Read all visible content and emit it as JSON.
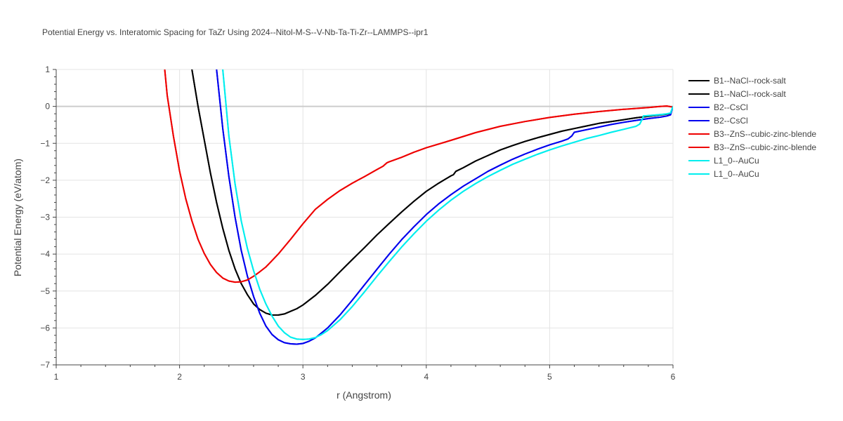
{
  "chart_data": {
    "type": "line",
    "title": "Potential Energy vs. Interatomic Spacing for TaZr Using 2024--Nitol-M-S--V-Nb-Ta-Ti-Zr--LAMMPS--ipr1",
    "xlabel": "r (Angstrom)",
    "ylabel": "Potential Energy (eV/atom)",
    "xlim": [
      1,
      6
    ],
    "ylim": [
      -7,
      1
    ],
    "xticks": [
      1,
      2,
      3,
      4,
      5,
      6
    ],
    "yticks": [
      1,
      0,
      -1,
      -2,
      -3,
      -4,
      -5,
      -6,
      -7
    ],
    "ytick_labels": [
      "1",
      "0",
      "−1",
      "−2",
      "−3",
      "−4",
      "−5",
      "−6",
      "−7"
    ],
    "grid": true,
    "legend_position": "right",
    "series": [
      {
        "name": "B1--NaCl--rock-salt",
        "color": "#000000",
        "x": [
          2.1,
          2.15,
          2.2,
          2.25,
          2.3,
          2.35,
          2.4,
          2.45,
          2.5,
          2.55,
          2.6,
          2.65,
          2.7,
          2.75,
          2.8,
          2.85,
          2.9,
          2.95,
          3.0,
          3.1,
          3.2,
          3.3,
          3.4,
          3.5,
          3.6,
          3.7,
          3.8,
          3.9,
          4.0,
          4.1,
          4.2,
          4.22,
          4.24,
          4.3,
          4.4,
          4.5,
          4.6,
          4.7,
          4.8,
          4.9,
          5.0,
          5.1,
          5.2,
          5.3,
          5.4,
          5.5,
          5.6,
          5.7,
          5.8,
          5.9,
          5.95,
          5.98,
          6.0
        ],
        "y": [
          1.0,
          0.0,
          -0.9,
          -1.8,
          -2.6,
          -3.3,
          -3.9,
          -4.4,
          -4.8,
          -5.1,
          -5.35,
          -5.5,
          -5.6,
          -5.65,
          -5.65,
          -5.62,
          -5.55,
          -5.48,
          -5.38,
          -5.12,
          -4.82,
          -4.48,
          -4.15,
          -3.82,
          -3.48,
          -3.17,
          -2.86,
          -2.57,
          -2.3,
          -2.08,
          -1.88,
          -1.85,
          -1.76,
          -1.66,
          -1.48,
          -1.33,
          -1.18,
          -1.06,
          -0.95,
          -0.85,
          -0.76,
          -0.67,
          -0.6,
          -0.53,
          -0.46,
          -0.41,
          -0.36,
          -0.31,
          -0.27,
          -0.23,
          -0.21,
          -0.19,
          0.0
        ]
      },
      {
        "name": "B1--NaCl--rock-salt",
        "color": "#000000",
        "x": [
          2.1,
          2.15,
          2.2,
          2.25,
          2.3,
          2.35,
          2.4,
          2.45,
          2.5,
          2.55,
          2.6,
          2.65,
          2.7,
          2.75,
          2.8,
          2.85,
          2.9,
          2.95,
          3.0,
          3.1,
          3.2,
          3.3,
          3.4,
          3.5,
          3.6,
          3.7,
          3.8,
          3.9,
          4.0,
          4.1,
          4.2,
          4.22,
          4.24,
          4.3,
          4.4,
          4.5,
          4.6,
          4.7,
          4.8,
          4.9,
          5.0,
          5.1,
          5.2,
          5.3,
          5.4,
          5.5,
          5.6,
          5.7,
          5.8,
          5.9,
          5.95,
          5.98,
          6.0
        ],
        "y": [
          1.0,
          0.0,
          -0.9,
          -1.8,
          -2.6,
          -3.3,
          -3.9,
          -4.4,
          -4.8,
          -5.1,
          -5.35,
          -5.5,
          -5.6,
          -5.65,
          -5.65,
          -5.62,
          -5.55,
          -5.48,
          -5.38,
          -5.12,
          -4.82,
          -4.48,
          -4.15,
          -3.82,
          -3.48,
          -3.17,
          -2.86,
          -2.57,
          -2.3,
          -2.08,
          -1.88,
          -1.85,
          -1.76,
          -1.66,
          -1.48,
          -1.33,
          -1.18,
          -1.06,
          -0.95,
          -0.85,
          -0.76,
          -0.67,
          -0.6,
          -0.53,
          -0.46,
          -0.41,
          -0.36,
          -0.31,
          -0.27,
          -0.23,
          -0.21,
          -0.19,
          0.0
        ]
      },
      {
        "name": "B2--CsCl",
        "color": "#0000ee",
        "x": [
          2.3,
          2.35,
          2.4,
          2.45,
          2.5,
          2.55,
          2.6,
          2.65,
          2.7,
          2.75,
          2.8,
          2.85,
          2.9,
          2.95,
          3.0,
          3.05,
          3.1,
          3.15,
          3.2,
          3.3,
          3.4,
          3.5,
          3.6,
          3.7,
          3.8,
          3.9,
          4.0,
          4.1,
          4.2,
          4.3,
          4.4,
          4.5,
          4.6,
          4.7,
          4.8,
          4.9,
          5.0,
          5.1,
          5.15,
          5.18,
          5.2,
          5.3,
          5.4,
          5.5,
          5.6,
          5.7,
          5.8,
          5.9,
          5.95,
          5.98,
          6.0
        ],
        "y": [
          1.0,
          -0.6,
          -1.9,
          -3.0,
          -3.9,
          -4.6,
          -5.15,
          -5.6,
          -5.95,
          -6.18,
          -6.32,
          -6.4,
          -6.43,
          -6.44,
          -6.42,
          -6.36,
          -6.27,
          -6.14,
          -6.0,
          -5.65,
          -5.25,
          -4.83,
          -4.41,
          -4.0,
          -3.61,
          -3.26,
          -2.93,
          -2.64,
          -2.39,
          -2.16,
          -1.96,
          -1.76,
          -1.59,
          -1.43,
          -1.29,
          -1.16,
          -1.04,
          -0.94,
          -0.88,
          -0.8,
          -0.7,
          -0.63,
          -0.56,
          -0.49,
          -0.43,
          -0.38,
          -0.33,
          -0.29,
          -0.26,
          -0.23,
          0.0
        ]
      },
      {
        "name": "B2--CsCl",
        "color": "#0000ee",
        "x": [
          2.3,
          2.35,
          2.4,
          2.45,
          2.5,
          2.55,
          2.6,
          2.65,
          2.7,
          2.75,
          2.8,
          2.85,
          2.9,
          2.95,
          3.0,
          3.05,
          3.1,
          3.15,
          3.2,
          3.3,
          3.4,
          3.5,
          3.6,
          3.7,
          3.8,
          3.9,
          4.0,
          4.1,
          4.2,
          4.3,
          4.4,
          4.5,
          4.6,
          4.7,
          4.8,
          4.9,
          5.0,
          5.1,
          5.15,
          5.18,
          5.2,
          5.3,
          5.4,
          5.5,
          5.6,
          5.7,
          5.8,
          5.9,
          5.95,
          5.98,
          6.0
        ],
        "y": [
          1.0,
          -0.6,
          -1.9,
          -3.0,
          -3.9,
          -4.6,
          -5.15,
          -5.6,
          -5.95,
          -6.18,
          -6.32,
          -6.4,
          -6.43,
          -6.44,
          -6.42,
          -6.36,
          -6.27,
          -6.14,
          -6.0,
          -5.65,
          -5.25,
          -4.83,
          -4.41,
          -4.0,
          -3.61,
          -3.26,
          -2.93,
          -2.64,
          -2.39,
          -2.16,
          -1.96,
          -1.76,
          -1.59,
          -1.43,
          -1.29,
          -1.16,
          -1.04,
          -0.94,
          -0.88,
          -0.8,
          -0.7,
          -0.63,
          -0.56,
          -0.49,
          -0.43,
          -0.38,
          -0.33,
          -0.29,
          -0.26,
          -0.23,
          0.0
        ]
      },
      {
        "name": "B3--ZnS--cubic-zinc-blende",
        "color": "#ee0000",
        "x": [
          1.88,
          1.9,
          1.95,
          2.0,
          2.05,
          2.1,
          2.15,
          2.2,
          2.25,
          2.3,
          2.35,
          2.4,
          2.45,
          2.5,
          2.55,
          2.6,
          2.65,
          2.7,
          2.8,
          2.9,
          3.0,
          3.1,
          3.2,
          3.3,
          3.4,
          3.5,
          3.6,
          3.65,
          3.68,
          3.7,
          3.8,
          3.9,
          4.0,
          4.2,
          4.4,
          4.6,
          4.8,
          5.0,
          5.2,
          5.4,
          5.6,
          5.8,
          5.9,
          5.95,
          6.0
        ],
        "y": [
          1.0,
          0.3,
          -0.8,
          -1.75,
          -2.5,
          -3.1,
          -3.6,
          -3.98,
          -4.28,
          -4.5,
          -4.65,
          -4.73,
          -4.76,
          -4.75,
          -4.7,
          -4.6,
          -4.48,
          -4.35,
          -4.0,
          -3.6,
          -3.18,
          -2.79,
          -2.52,
          -2.28,
          -2.08,
          -1.9,
          -1.71,
          -1.62,
          -1.53,
          -1.5,
          -1.38,
          -1.24,
          -1.12,
          -0.92,
          -0.71,
          -0.54,
          -0.41,
          -0.3,
          -0.21,
          -0.14,
          -0.08,
          -0.03,
          0.0,
          0.01,
          -0.02
        ]
      },
      {
        "name": "B3--ZnS--cubic-zinc-blende",
        "color": "#ee0000",
        "x": [
          1.88,
          1.9,
          1.95,
          2.0,
          2.05,
          2.1,
          2.15,
          2.2,
          2.25,
          2.3,
          2.35,
          2.4,
          2.45,
          2.5,
          2.55,
          2.6,
          2.65,
          2.7,
          2.8,
          2.9,
          3.0,
          3.1,
          3.2,
          3.3,
          3.4,
          3.5,
          3.6,
          3.65,
          3.68,
          3.7,
          3.8,
          3.9,
          4.0,
          4.2,
          4.4,
          4.6,
          4.8,
          5.0,
          5.2,
          5.4,
          5.6,
          5.8,
          5.9,
          5.95,
          6.0
        ],
        "y": [
          1.0,
          0.3,
          -0.8,
          -1.75,
          -2.5,
          -3.1,
          -3.6,
          -3.98,
          -4.28,
          -4.5,
          -4.65,
          -4.73,
          -4.76,
          -4.75,
          -4.7,
          -4.6,
          -4.48,
          -4.35,
          -4.0,
          -3.6,
          -3.18,
          -2.79,
          -2.52,
          -2.28,
          -2.08,
          -1.9,
          -1.71,
          -1.62,
          -1.53,
          -1.5,
          -1.38,
          -1.24,
          -1.12,
          -0.92,
          -0.71,
          -0.54,
          -0.41,
          -0.3,
          -0.21,
          -0.14,
          -0.08,
          -0.03,
          0.0,
          0.01,
          -0.02
        ]
      },
      {
        "name": "L1_0--AuCu",
        "color": "#00eeee",
        "x": [
          2.35,
          2.4,
          2.45,
          2.5,
          2.55,
          2.6,
          2.65,
          2.7,
          2.75,
          2.8,
          2.85,
          2.9,
          2.95,
          3.0,
          3.05,
          3.1,
          3.15,
          3.2,
          3.3,
          3.4,
          3.5,
          3.6,
          3.7,
          3.8,
          3.9,
          4.0,
          4.1,
          4.2,
          4.3,
          4.4,
          4.5,
          4.6,
          4.7,
          4.8,
          4.9,
          5.0,
          5.1,
          5.2,
          5.3,
          5.4,
          5.5,
          5.6,
          5.7,
          5.73,
          5.75,
          5.76,
          5.8,
          5.9,
          5.95,
          5.98,
          6.0
        ],
        "y": [
          1.0,
          -0.8,
          -2.1,
          -3.1,
          -3.85,
          -4.45,
          -4.95,
          -5.35,
          -5.68,
          -5.95,
          -6.13,
          -6.25,
          -6.3,
          -6.31,
          -6.3,
          -6.26,
          -6.18,
          -6.07,
          -5.78,
          -5.42,
          -5.02,
          -4.6,
          -4.2,
          -3.81,
          -3.45,
          -3.11,
          -2.81,
          -2.54,
          -2.3,
          -2.09,
          -1.9,
          -1.73,
          -1.57,
          -1.43,
          -1.3,
          -1.18,
          -1.07,
          -0.97,
          -0.87,
          -0.79,
          -0.7,
          -0.62,
          -0.54,
          -0.48,
          -0.35,
          -0.26,
          -0.25,
          -0.22,
          -0.2,
          -0.18,
          0.0
        ]
      },
      {
        "name": "L1_0--AuCu",
        "color": "#00eeee",
        "x": [
          2.35,
          2.4,
          2.45,
          2.5,
          2.55,
          2.6,
          2.65,
          2.7,
          2.75,
          2.8,
          2.85,
          2.9,
          2.95,
          3.0,
          3.05,
          3.1,
          3.15,
          3.2,
          3.3,
          3.4,
          3.5,
          3.6,
          3.7,
          3.8,
          3.9,
          4.0,
          4.1,
          4.2,
          4.3,
          4.4,
          4.5,
          4.6,
          4.7,
          4.8,
          4.9,
          5.0,
          5.1,
          5.2,
          5.3,
          5.4,
          5.5,
          5.6,
          5.7,
          5.73,
          5.75,
          5.76,
          5.8,
          5.9,
          5.95,
          5.98,
          6.0
        ],
        "y": [
          1.0,
          -0.8,
          -2.1,
          -3.1,
          -3.85,
          -4.45,
          -4.95,
          -5.35,
          -5.68,
          -5.95,
          -6.13,
          -6.25,
          -6.3,
          -6.31,
          -6.3,
          -6.26,
          -6.18,
          -6.07,
          -5.78,
          -5.42,
          -5.02,
          -4.6,
          -4.2,
          -3.81,
          -3.45,
          -3.11,
          -2.81,
          -2.54,
          -2.3,
          -2.09,
          -1.9,
          -1.73,
          -1.57,
          -1.43,
          -1.3,
          -1.18,
          -1.07,
          -0.97,
          -0.87,
          -0.79,
          -0.7,
          -0.62,
          -0.54,
          -0.48,
          -0.35,
          -0.26,
          -0.25,
          -0.22,
          -0.2,
          -0.18,
          0.0
        ]
      }
    ]
  }
}
